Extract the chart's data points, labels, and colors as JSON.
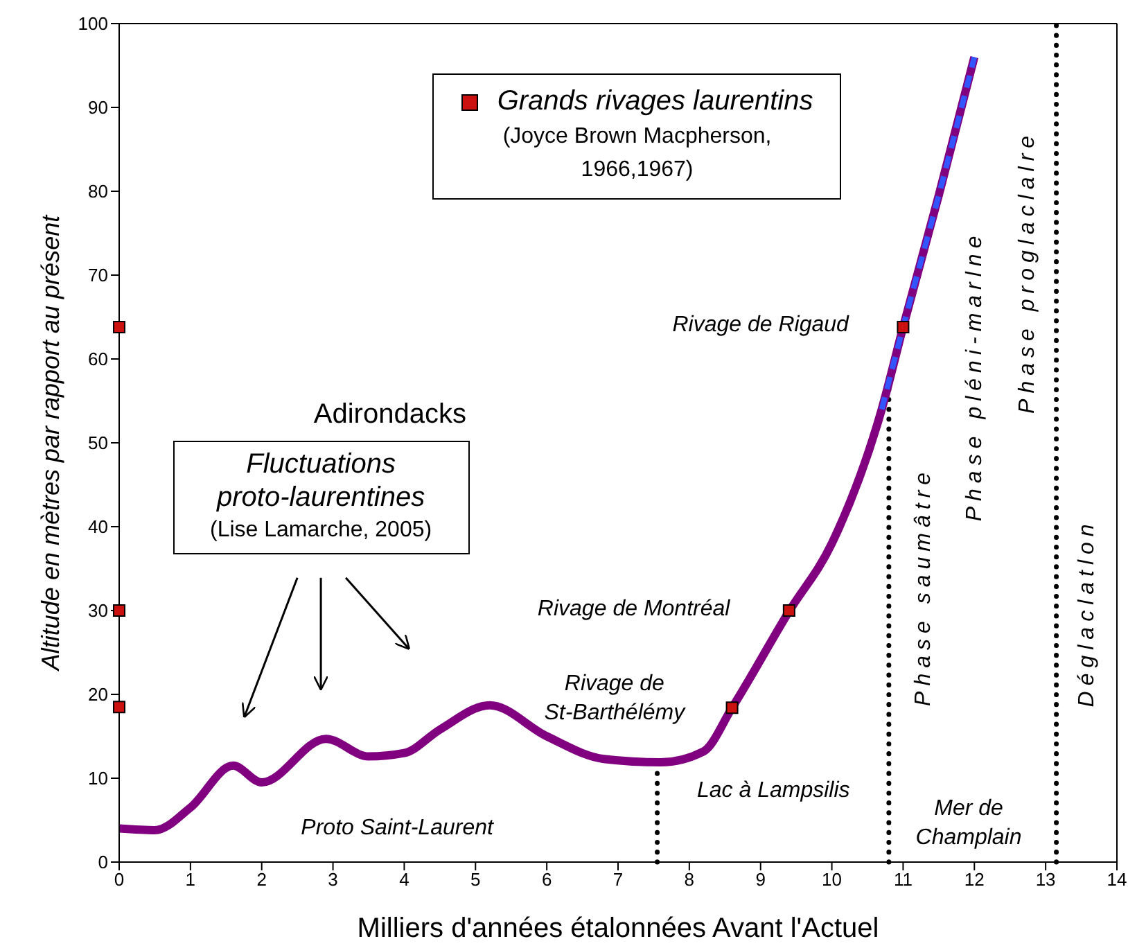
{
  "chart_data": {
    "type": "line",
    "xlabel": "Milliers d'années étalonnées Avant l'Actuel",
    "ylabel": "Altitude en mètres par rapport au présent",
    "xlim": [
      0,
      14
    ],
    "xticks": [
      0,
      1,
      2,
      3,
      4,
      5,
      6,
      7,
      8,
      9,
      10,
      11,
      12,
      13,
      14
    ],
    "ylim": [
      0,
      100
    ],
    "yticks": [
      0,
      10,
      20,
      30,
      40,
      50,
      60,
      70,
      80,
      90,
      100
    ],
    "series": [
      {
        "color": "#800080",
        "line_style": "solid",
        "marker": "none",
        "x": [
          0,
          0.5,
          1,
          1.6,
          2,
          2.9,
          3.5,
          4,
          4.5,
          5.2,
          6,
          6.8,
          7.6,
          8.2,
          8.6,
          9.4,
          10,
          10.7,
          11,
          11.5,
          12
        ],
        "values": [
          4,
          3.8,
          6.5,
          11.5,
          9.5,
          14.7,
          12.6,
          13,
          15.8,
          18.7,
          15,
          12.3,
          11.9,
          13.2,
          18.4,
          29.9,
          38,
          54,
          63.8,
          79.5,
          96
        ]
      },
      {
        "color": "#3355ff",
        "line_style": "dashed",
        "marker": "none",
        "x": [
          10.7,
          11,
          11.5,
          12
        ],
        "values": [
          54,
          63.8,
          79.5,
          96
        ]
      },
      {
        "type": "scatter",
        "name": "Grands rivages laurentins",
        "color": "#cc1111",
        "marker": "square",
        "x": [
          0,
          0,
          0,
          8.6,
          9.4,
          11
        ],
        "values": [
          18.5,
          30,
          63.8,
          18.4,
          30,
          63.8
        ]
      }
    ],
    "ref_lines": [
      {
        "axis": "x",
        "value": 7.55,
        "color": "#000000",
        "line_style": "dotted"
      },
      {
        "axis": "x",
        "value": 10.8,
        "color": "#000000",
        "line_style": "dotted"
      },
      {
        "axis": "x",
        "value": 13.15,
        "color": "#000000",
        "line_style": "dotted"
      }
    ],
    "legend": "top",
    "grid": false,
    "annotations": [
      "Adirondacks",
      "Fluctuations proto-laurentines",
      "(Lise Lamarche, 2005)",
      "(Joyce Brown Macpherson, 1966,1967)",
      "Rivage de Rigaud",
      "Rivage de Montréal",
      "Rivage de St-Barthélémy",
      "Proto Saint-Laurent",
      "Lac à Lampsilis",
      "Mer de Champlain",
      "Phase saumâtre",
      "Phase pléni-marlne",
      "Phase proglaclalre",
      "Déglaclatlon"
    ]
  }
}
